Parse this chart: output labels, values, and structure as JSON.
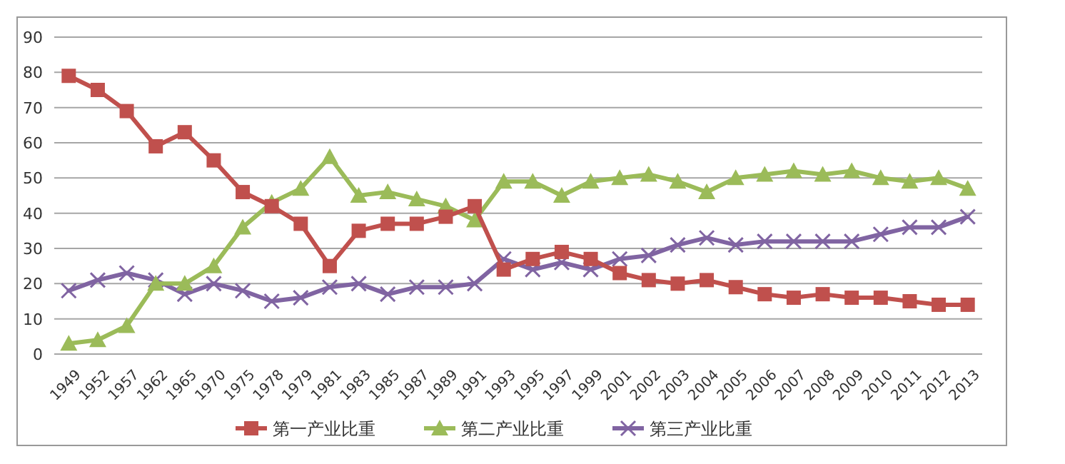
{
  "chart_data": {
    "type": "line",
    "categories": [
      "1949",
      "1952",
      "1957",
      "1962",
      "1965",
      "1970",
      "1975",
      "1978",
      "1979",
      "1981",
      "1983",
      "1985",
      "1987",
      "1989",
      "1991",
      "1993",
      "1995",
      "1997",
      "1999",
      "2001",
      "2002",
      "2003",
      "2004",
      "2005",
      "2006",
      "2007",
      "2008",
      "2009",
      "2010",
      "2011",
      "2012",
      "2013"
    ],
    "series": [
      {
        "name": "第一产业比重",
        "color": "#c0504d",
        "marker": "square",
        "values": [
          79,
          75,
          69,
          59,
          63,
          55,
          46,
          42,
          37,
          25,
          35,
          37,
          37,
          39,
          42,
          24,
          27,
          29,
          27,
          23,
          21,
          20,
          21,
          19,
          17,
          16,
          17,
          16,
          16,
          15,
          14,
          14
        ]
      },
      {
        "name": "第二产业比重",
        "color": "#9bbb59",
        "marker": "triangle",
        "values": [
          3,
          4,
          8,
          20,
          20,
          25,
          36,
          43,
          47,
          56,
          45,
          46,
          44,
          42,
          38,
          49,
          49,
          45,
          49,
          50,
          51,
          49,
          46,
          50,
          51,
          52,
          51,
          52,
          50,
          49,
          50,
          47
        ]
      },
      {
        "name": "第三产业比重",
        "color": "#8064a2",
        "marker": "cross",
        "values": [
          18,
          21,
          23,
          21,
          17,
          20,
          18,
          15,
          16,
          19,
          20,
          17,
          19,
          19,
          20,
          27,
          24,
          26,
          24,
          27,
          28,
          31,
          33,
          31,
          32,
          32,
          32,
          32,
          34,
          36,
          36,
          39
        ]
      }
    ],
    "ylim": [
      0,
      90
    ],
    "yticks": [
      0,
      10,
      20,
      30,
      40,
      50,
      60,
      70,
      80,
      90
    ],
    "grid": "y",
    "legend": "bottom"
  }
}
